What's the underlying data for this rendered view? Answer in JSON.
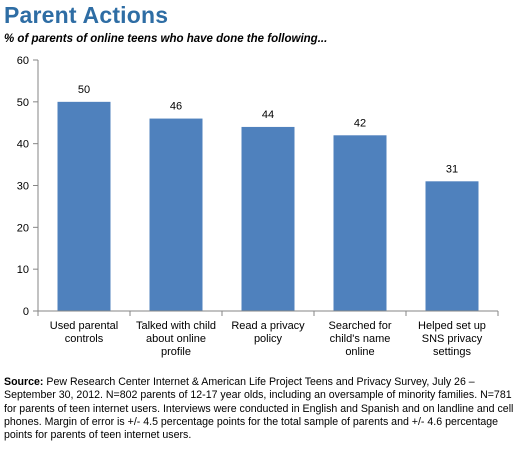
{
  "title": "Parent Actions",
  "subtitle": "% of parents of online teens who have done the following...",
  "source": {
    "label": "Source:",
    "text": "Pew Research Center Internet & American Life Project Teens and Privacy Survey, July 26 – September 30, 2012. N=802 parents of 12-17 year olds, including an oversample of minority families. N=781 for parents of teen internet users.  Interviews were conducted in English and Spanish and on landline and cell phones.  Margin of error is +/- 4.5 percentage points for the total sample of parents and +/- 4.6 percentage points for parents of teen internet users."
  },
  "colors": {
    "bar": "#4f81bd",
    "title": "#2e6da4",
    "axis": "#868686",
    "grid": "#d9d9d9"
  },
  "chart_data": {
    "type": "bar",
    "title": "Parent Actions",
    "categories": [
      [
        "Used parental",
        "controls"
      ],
      [
        "Talked with child",
        "about online",
        "profile"
      ],
      [
        "Read a privacy",
        "policy"
      ],
      [
        "Searched for",
        "child's name",
        "online"
      ],
      [
        "Helped set up",
        "SNS privacy",
        "settings"
      ]
    ],
    "values": [
      50,
      46,
      44,
      42,
      31
    ],
    "data_labels": [
      "50",
      "46",
      "44",
      "42",
      "31"
    ],
    "ylim": [
      0,
      60
    ],
    "yticks": [
      0,
      10,
      20,
      30,
      40,
      50,
      60
    ],
    "grid": false,
    "legend": "none"
  }
}
